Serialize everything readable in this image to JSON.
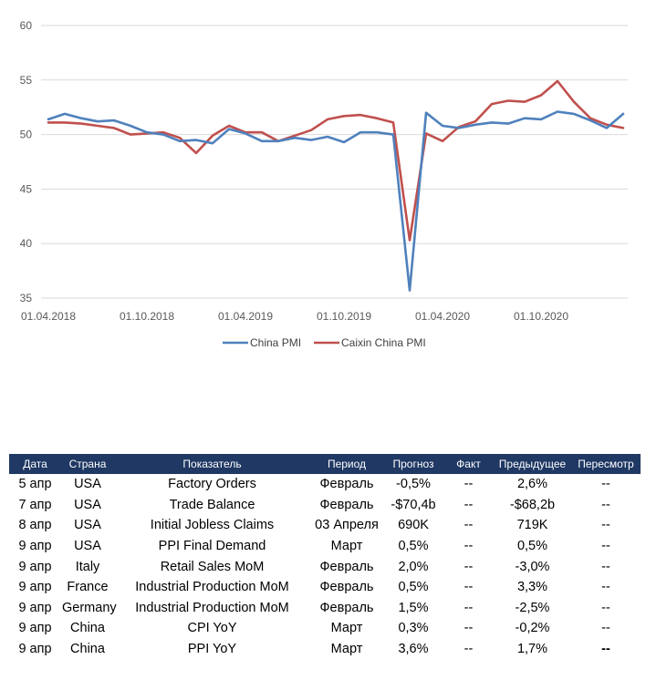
{
  "chart_data": {
    "type": "line",
    "title": "",
    "xlabel": "",
    "ylabel": "",
    "ylim": [
      35,
      60
    ],
    "yticks": [
      35,
      40,
      45,
      50,
      55,
      60
    ],
    "grid": "horizontal",
    "legend_position": "bottom",
    "x_tick_labels": [
      "01.04.2018",
      "01.10.2018",
      "01.04.2019",
      "01.10.2019",
      "01.04.2020",
      "01.10.2020"
    ],
    "x": [
      "2018-04",
      "2018-05",
      "2018-06",
      "2018-07",
      "2018-08",
      "2018-09",
      "2018-10",
      "2018-11",
      "2018-12",
      "2019-01",
      "2019-02",
      "2019-03",
      "2019-04",
      "2019-05",
      "2019-06",
      "2019-07",
      "2019-08",
      "2019-09",
      "2019-10",
      "2019-11",
      "2019-12",
      "2020-01",
      "2020-02",
      "2020-03",
      "2020-04",
      "2020-05",
      "2020-06",
      "2020-07",
      "2020-08",
      "2020-09",
      "2020-10",
      "2020-11",
      "2020-12",
      "2021-01",
      "2021-02",
      "2021-03"
    ],
    "series": [
      {
        "name": "China PMI",
        "color": "#4f81bd",
        "values": [
          51.4,
          51.9,
          51.5,
          51.2,
          51.3,
          50.8,
          50.2,
          50.0,
          49.4,
          49.5,
          49.2,
          50.5,
          50.1,
          49.4,
          49.4,
          49.7,
          49.5,
          49.8,
          49.3,
          50.2,
          50.2,
          50.0,
          35.7,
          52.0,
          50.8,
          50.6,
          50.9,
          51.1,
          51.0,
          51.5,
          51.4,
          52.1,
          51.9,
          51.3,
          50.6,
          51.9
        ]
      },
      {
        "name": "Caixin China PMI",
        "color": "#c0504d",
        "values": [
          51.1,
          51.1,
          51.0,
          50.8,
          50.6,
          50.0,
          50.1,
          50.2,
          49.7,
          48.3,
          49.9,
          50.8,
          50.2,
          50.2,
          49.4,
          49.9,
          50.4,
          51.4,
          51.7,
          51.8,
          51.5,
          51.1,
          40.3,
          50.1,
          49.4,
          50.7,
          51.2,
          52.8,
          53.1,
          53.0,
          53.6,
          54.9,
          53.0,
          51.5,
          50.9,
          50.6
        ]
      }
    ]
  },
  "calendar": {
    "headers": [
      "Дата",
      "Страна",
      "Показатель",
      "Период",
      "Прогноз",
      "Факт",
      "Предыдущее",
      "Пересмотр"
    ],
    "rows": [
      [
        "5 апр",
        "USA",
        "Factory Orders",
        "Февраль",
        "-0,5%",
        "--",
        "2,6%",
        "--"
      ],
      [
        "7 апр",
        "USA",
        "Trade Balance",
        "Февраль",
        "-$70,4b",
        "--",
        "-$68,2b",
        "--"
      ],
      [
        "8 апр",
        "USA",
        "Initial Jobless Claims",
        "03 Апреля",
        "690K",
        "--",
        "719K",
        "--"
      ],
      [
        "9 апр",
        "USA",
        "PPI Final Demand",
        "Март",
        "0,5%",
        "--",
        "0,5%",
        "--"
      ],
      [
        "9 апр",
        "Italy",
        "Retail Sales MoM",
        "Февраль",
        "2,0%",
        "--",
        "-3,0%",
        "--"
      ],
      [
        "9 апр",
        "France",
        "Industrial Production MoM",
        "Февраль",
        "0,5%",
        "--",
        "3,3%",
        "--"
      ],
      [
        "9 апр",
        "Germany",
        "Industrial Production MoM",
        "Февраль",
        "1,5%",
        "--",
        "-2,5%",
        "--"
      ],
      [
        "9 апр",
        "China",
        "CPI YoY",
        "Март",
        "0,3%",
        "--",
        "-0,2%",
        "--"
      ],
      [
        "9 апр",
        "China",
        "PPI YoY",
        "Март",
        "3,6%",
        "--",
        "1,7%",
        "--"
      ]
    ]
  }
}
